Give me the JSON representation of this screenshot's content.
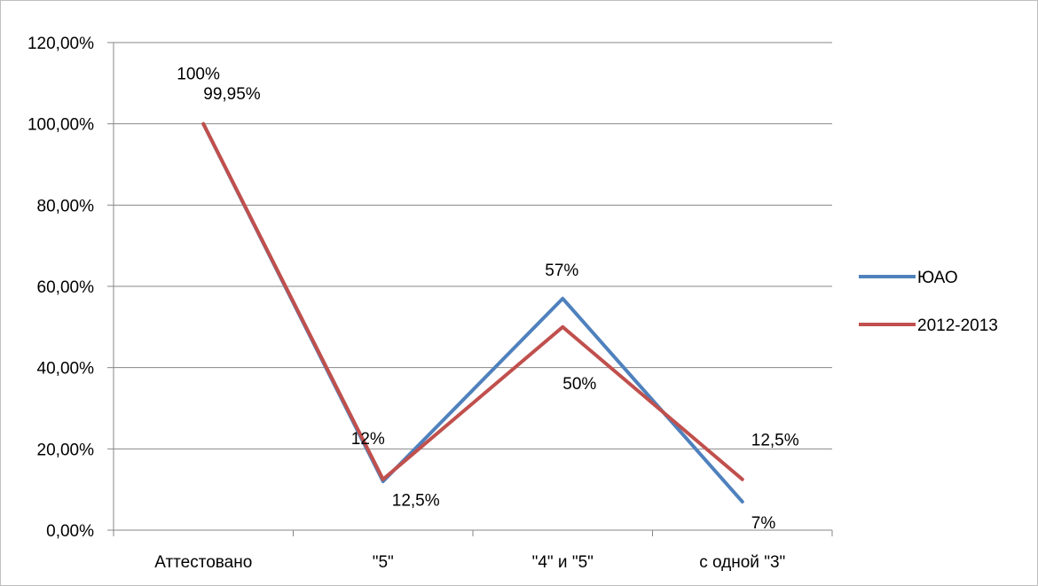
{
  "chart_data": {
    "type": "line",
    "title": "",
    "xlabel": "",
    "ylabel": "",
    "categories": [
      "Аттестовано",
      "\"5\"",
      "\"4\" и \"5\"",
      "с одной \"3\""
    ],
    "ylim": [
      0,
      120
    ],
    "yticks": [
      0,
      20,
      40,
      60,
      80,
      100,
      120
    ],
    "ytick_labels": [
      "0,00%",
      "20,00%",
      "40,00%",
      "60,00%",
      "80,00%",
      "100,00%",
      "120,00%"
    ],
    "grid": true,
    "legend": "right",
    "series": [
      {
        "name": "ЮАО",
        "color": "#4F81BD",
        "values": [
          99.95,
          12,
          57,
          7
        ],
        "labels": [
          "99,95%",
          "12%",
          "57%",
          "7%"
        ]
      },
      {
        "name": "2012-2013",
        "color": "#C0504D",
        "values": [
          100,
          12.5,
          50,
          12.5
        ],
        "labels": [
          "100%",
          "12,5%",
          "50%",
          "12,5%"
        ]
      }
    ]
  }
}
